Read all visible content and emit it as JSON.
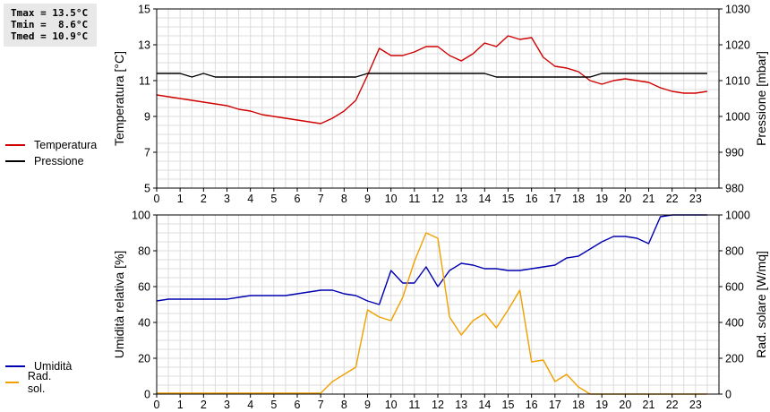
{
  "stats": {
    "tmax": "Tmax = 13.5°C",
    "tmin": "Tmin =  8.6°C",
    "tmed": "Tmed = 10.9°C"
  },
  "legend_top": [
    {
      "label": "Temperatura",
      "color": "#d00000"
    },
    {
      "label": "Pressione",
      "color": "#000000"
    }
  ],
  "legend_bottom": [
    {
      "label": "Umidità",
      "color": "#0000b0"
    },
    {
      "label": "Rad. sol.",
      "color": "#f0a000"
    }
  ],
  "chart_data": [
    {
      "type": "line",
      "xlim": [
        0,
        24
      ],
      "xticks": [
        0,
        1,
        2,
        3,
        4,
        5,
        6,
        7,
        8,
        9,
        10,
        11,
        12,
        13,
        14,
        15,
        16,
        17,
        18,
        19,
        20,
        21,
        22,
        23
      ],
      "ylabel": "Temperatura [°C]",
      "ylim": [
        5,
        15
      ],
      "yticks": [
        5,
        7,
        9,
        11,
        13,
        15
      ],
      "y2label": "Pressione [mbar]",
      "y2lim": [
        980,
        1030
      ],
      "y2ticks": [
        980,
        990,
        1000,
        1010,
        1020,
        1030
      ],
      "grid": true,
      "series": [
        {
          "name": "Temperatura",
          "axis": "left",
          "color": "#d00000",
          "x": [
            0,
            0.5,
            1,
            1.5,
            2,
            2.5,
            3,
            3.5,
            4,
            4.5,
            5,
            5.5,
            6,
            6.5,
            7,
            7.5,
            8,
            8.5,
            9,
            9.5,
            10,
            10.5,
            11,
            11.5,
            12,
            12.5,
            13,
            13.5,
            14,
            14.5,
            15,
            15.5,
            16,
            16.5,
            17,
            17.5,
            18,
            18.5,
            19,
            19.5,
            20,
            20.5,
            21,
            21.5,
            22,
            22.5,
            23,
            23.5
          ],
          "values": [
            10.2,
            10.1,
            10.0,
            9.9,
            9.8,
            9.7,
            9.6,
            9.4,
            9.3,
            9.1,
            9.0,
            8.9,
            8.8,
            8.7,
            8.6,
            8.9,
            9.3,
            9.9,
            11.3,
            12.8,
            12.4,
            12.4,
            12.6,
            12.9,
            12.9,
            12.4,
            12.1,
            12.5,
            13.1,
            12.9,
            13.5,
            13.3,
            13.4,
            12.3,
            11.8,
            11.7,
            11.5,
            11.0,
            10.8,
            11.0,
            11.1,
            11.0,
            10.9,
            10.6,
            10.4,
            10.3,
            10.3,
            10.4
          ]
        },
        {
          "name": "Pressione",
          "axis": "right",
          "color": "#000000",
          "x": [
            0,
            0.5,
            1,
            1.5,
            2,
            2.5,
            3,
            3.5,
            4,
            4.5,
            5,
            5.5,
            6,
            6.5,
            7,
            7.5,
            8,
            8.5,
            9,
            9.5,
            10,
            10.5,
            11,
            11.5,
            12,
            12.5,
            13,
            13.5,
            14,
            14.5,
            15,
            15.5,
            16,
            16.5,
            17,
            17.5,
            18,
            18.5,
            19,
            19.5,
            20,
            20.5,
            21,
            21.5,
            22,
            22.5,
            23,
            23.5
          ],
          "values": [
            1012,
            1012,
            1012,
            1011,
            1012,
            1011,
            1011,
            1011,
            1011,
            1011,
            1011,
            1011,
            1011,
            1011,
            1011,
            1011,
            1011,
            1011,
            1012,
            1012,
            1012,
            1012,
            1012,
            1012,
            1012,
            1012,
            1012,
            1012,
            1012,
            1011,
            1011,
            1011,
            1011,
            1011,
            1011,
            1011,
            1011,
            1011,
            1012,
            1012,
            1012,
            1012,
            1012,
            1012,
            1012,
            1012,
            1012,
            1012
          ]
        }
      ]
    },
    {
      "type": "line",
      "xlim": [
        0,
        24
      ],
      "xticks": [
        0,
        1,
        2,
        3,
        4,
        5,
        6,
        7,
        8,
        9,
        10,
        11,
        12,
        13,
        14,
        15,
        16,
        17,
        18,
        19,
        20,
        21,
        22,
        23
      ],
      "ylabel": "Umidità relativa [%]",
      "ylim": [
        0,
        100
      ],
      "yticks": [
        0,
        20,
        40,
        60,
        80,
        100
      ],
      "y2label": "Rad. solare [W/mq]",
      "y2lim": [
        0,
        1000
      ],
      "y2ticks": [
        0,
        200,
        400,
        600,
        800,
        1000
      ],
      "grid": true,
      "series": [
        {
          "name": "Umidità",
          "axis": "left",
          "color": "#0000b0",
          "x": [
            0,
            0.5,
            1,
            1.5,
            2,
            2.5,
            3,
            3.5,
            4,
            4.5,
            5,
            5.5,
            6,
            6.5,
            7,
            7.5,
            8,
            8.5,
            9,
            9.5,
            10,
            10.5,
            11,
            11.5,
            12,
            12.5,
            13,
            13.5,
            14,
            14.5,
            15,
            15.5,
            16,
            16.5,
            17,
            17.5,
            18,
            18.5,
            19,
            19.5,
            20,
            20.5,
            21,
            21.5,
            22,
            22.5,
            23,
            23.5
          ],
          "values": [
            52,
            53,
            53,
            53,
            53,
            53,
            53,
            54,
            55,
            55,
            55,
            55,
            56,
            57,
            58,
            58,
            56,
            55,
            52,
            50,
            69,
            62,
            62,
            71,
            60,
            69,
            73,
            72,
            70,
            70,
            69,
            69,
            70,
            71,
            72,
            76,
            77,
            81,
            85,
            88,
            88,
            87,
            84,
            99,
            100,
            100,
            100,
            100
          ]
        },
        {
          "name": "Rad. sol.",
          "axis": "right",
          "color": "#f0a000",
          "x": [
            0,
            0.5,
            1,
            1.5,
            2,
            2.5,
            3,
            3.5,
            4,
            4.5,
            5,
            5.5,
            6,
            6.5,
            7,
            7.5,
            8,
            8.5,
            9,
            9.5,
            10,
            10.5,
            11,
            11.5,
            12,
            12.5,
            13,
            13.5,
            14,
            14.5,
            15,
            15.5,
            16,
            16.5,
            17,
            17.5,
            18,
            18.5,
            19,
            19.5,
            20,
            20.5,
            21,
            21.5,
            22,
            22.5,
            23,
            23.5
          ],
          "values": [
            5,
            5,
            5,
            5,
            5,
            5,
            5,
            5,
            5,
            5,
            5,
            5,
            5,
            5,
            5,
            70,
            110,
            150,
            470,
            430,
            410,
            540,
            740,
            900,
            870,
            430,
            330,
            410,
            450,
            370,
            470,
            580,
            180,
            190,
            70,
            110,
            40,
            0,
            0,
            0,
            0,
            0,
            0,
            0,
            0,
            0,
            0,
            0
          ]
        }
      ]
    }
  ]
}
